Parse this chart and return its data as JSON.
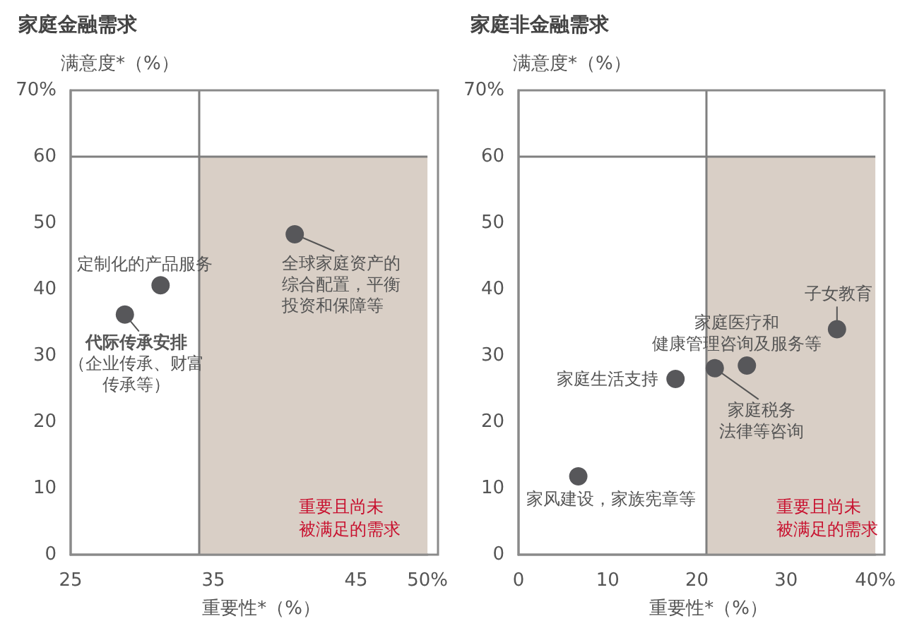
{
  "chart_data": [
    {
      "type": "scatter",
      "title": "家庭金融需求",
      "ylabel": "满意度*（%）",
      "xlabel": "重要性*（%）",
      "marker": "circle",
      "color": "#57575a",
      "x": [
        31.3,
        28.8,
        40.7
      ],
      "values": [
        40.6,
        36.2,
        48.3
      ],
      "xlim": [
        25,
        50
      ],
      "xticks": [
        25,
        35,
        45,
        {
          "value": 50,
          "label": "50%"
        }
      ],
      "ylim": [
        0,
        70
      ],
      "yticks": [
        0,
        10,
        20,
        30,
        40,
        50,
        60,
        {
          "value": 70,
          "label": "70%"
        }
      ],
      "ref_lines": [
        {
          "axis": "x",
          "value": 34,
          "color": "#7f7f7f"
        },
        {
          "axis": "y",
          "value": 60,
          "color": "#7f7f7f"
        }
      ],
      "bands": [
        {
          "axis": "x",
          "from": 34,
          "to": 50,
          "label": "重要且尚未被满足的需求",
          "color": "#d9cfc6"
        }
      ],
      "annotations": [
        {
          "text": "定制化的产品服务",
          "x": 31.3,
          "y": 40.6
        },
        {
          "text": "代际传承安排（企业传承、财富传承等）",
          "x": 28.8,
          "y": 36.2
        },
        {
          "text": "全球家庭资产的综合配置，平衡投资和保障等",
          "x": 40.7,
          "y": 48.3
        }
      ]
    },
    {
      "type": "scatter",
      "title": "家庭非金融需求",
      "ylabel": "满意度*（%）",
      "xlabel": "重要性*（%）",
      "marker": "circle",
      "color": "#57575a",
      "x": [
        6.7,
        17.6,
        22.0,
        25.6,
        35.7
      ],
      "values": [
        11.8,
        26.5,
        28.1,
        28.5,
        34.0
      ],
      "xlim": [
        0,
        40
      ],
      "xticks": [
        0,
        10,
        20,
        30,
        {
          "value": 40,
          "label": "40%"
        }
      ],
      "ylim": [
        0,
        70
      ],
      "yticks": [
        0,
        10,
        20,
        30,
        40,
        50,
        60,
        {
          "value": 70,
          "label": "70%"
        }
      ],
      "ref_lines": [
        {
          "axis": "x",
          "value": 21,
          "color": "#7f7f7f"
        },
        {
          "axis": "y",
          "value": 60,
          "color": "#7f7f7f"
        }
      ],
      "bands": [
        {
          "axis": "x",
          "from": 21,
          "to": 40,
          "label": "重要且尚未被满足的需求",
          "color": "#d9cfc6"
        }
      ],
      "annotations": [
        {
          "text": "家风建设，家族宪章等",
          "x": 6.7,
          "y": 11.8
        },
        {
          "text": "家庭生活支持",
          "x": 17.6,
          "y": 26.5
        },
        {
          "text": "家庭税务法律等咨询",
          "x": 22.0,
          "y": 28.1
        },
        {
          "text": "家庭医疗和健康管理咨询及服务等",
          "x": 25.6,
          "y": 28.5
        },
        {
          "text": "子女教育",
          "x": 35.7,
          "y": 34.0
        }
      ]
    }
  ]
}
